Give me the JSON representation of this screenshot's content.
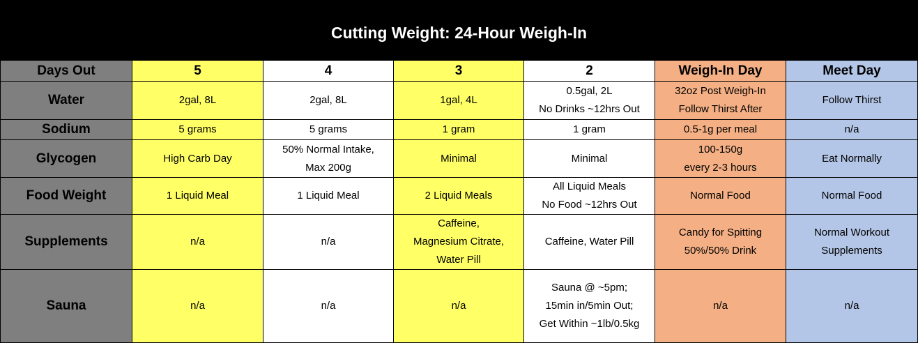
{
  "title": "Cutting Weight: 24-Hour Weigh-In",
  "header": {
    "label": "Days Out",
    "columns": [
      "5",
      "4",
      "3",
      "2",
      "Weigh-In Day",
      "Meet Day"
    ]
  },
  "rows": [
    {
      "label": "Water",
      "cells": [
        [
          "2gal, 8L"
        ],
        [
          "2gal, 8L"
        ],
        [
          "1gal, 4L"
        ],
        [
          "0.5gal, 2L",
          "No Drinks ~12hrs Out"
        ],
        [
          "32oz Post Weigh-In",
          "Follow Thirst After"
        ],
        [
          "Follow Thirst"
        ]
      ]
    },
    {
      "label": "Sodium",
      "cells": [
        [
          "5 grams"
        ],
        [
          "5 grams"
        ],
        [
          "1 gram"
        ],
        [
          "1 gram"
        ],
        [
          "0.5-1g per meal"
        ],
        [
          "n/a"
        ]
      ]
    },
    {
      "label": "Glycogen",
      "cells": [
        [
          "High Carb Day"
        ],
        [
          "50% Normal Intake,",
          "Max 200g"
        ],
        [
          "Minimal"
        ],
        [
          "Minimal"
        ],
        [
          "100-150g",
          "every 2-3 hours"
        ],
        [
          "Eat Normally"
        ]
      ]
    },
    {
      "label": "Food Weight",
      "cells": [
        [
          "1 Liquid Meal"
        ],
        [
          "1 Liquid Meal"
        ],
        [
          "2 Liquid Meals"
        ],
        [
          "All Liquid Meals",
          "No Food ~12hrs Out"
        ],
        [
          "Normal Food"
        ],
        [
          "Normal Food"
        ]
      ]
    },
    {
      "label": "Supplements",
      "cells": [
        [
          "n/a"
        ],
        [
          "n/a"
        ],
        [
          "Caffeine,",
          "Magnesium Citrate,",
          "Water Pill"
        ],
        [
          "Caffeine, Water Pill"
        ],
        [
          "Candy for Spitting",
          "50%/50% Drink"
        ],
        [
          "Normal Workout",
          "Supplements"
        ]
      ]
    },
    {
      "label": "Sauna",
      "cells": [
        [
          "n/a"
        ],
        [
          "n/a"
        ],
        [
          "n/a"
        ],
        [
          "Sauna @ ~5pm;",
          "15min in/5min Out;",
          "Get Within ~1lb/0.5kg"
        ],
        [
          "n/a"
        ],
        [
          "n/a"
        ]
      ]
    }
  ],
  "colors": {
    "title_bg": "#000000",
    "title_text": "#ffffff",
    "label_bg": "#7f7f7f",
    "yellow": "#ffff66",
    "white": "#ffffff",
    "orange": "#f4b084",
    "blue": "#b4c6e7",
    "border": "#000000"
  }
}
